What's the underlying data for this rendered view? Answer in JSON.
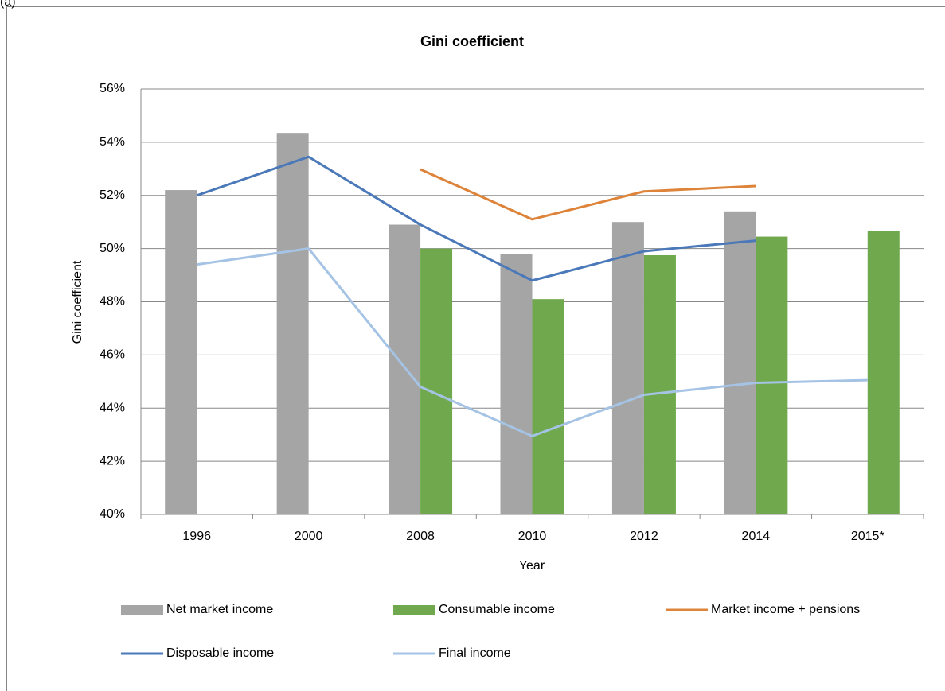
{
  "chart_data": {
    "type": "bar",
    "panel_label": "(a)",
    "title": "Gini coefficient",
    "x_label": "Year",
    "y_label": "Gini coefficient",
    "categories": [
      "1996",
      "2000",
      "2008",
      "2010",
      "2012",
      "2014",
      "2015*"
    ],
    "ylim": [
      40,
      56
    ],
    "yticks": [
      {
        "value": 40,
        "label": "40%"
      },
      {
        "value": 42,
        "label": "42%"
      },
      {
        "value": 44,
        "label": "44%"
      },
      {
        "value": 46,
        "label": "46%"
      },
      {
        "value": 48,
        "label": "48%"
      },
      {
        "value": 50,
        "label": "50%"
      },
      {
        "value": 52,
        "label": "52%"
      },
      {
        "value": 54,
        "label": "54%"
      },
      {
        "value": 56,
        "label": "56%"
      }
    ],
    "grid": true,
    "series": [
      {
        "name": "Net market income",
        "type": "bar",
        "color": "#a5a5a5",
        "values": [
          52.2,
          54.35,
          50.9,
          49.8,
          51.0,
          51.4,
          null
        ]
      },
      {
        "name": "Consumable income",
        "type": "bar",
        "color": "#70a94d",
        "values": [
          40,
          null,
          50.0,
          48.1,
          49.75,
          50.45,
          50.65
        ]
      },
      {
        "name": "Market income + pensions",
        "type": "line",
        "color": "#dd843a",
        "values": [
          null,
          null,
          52.98,
          51.1,
          52.15,
          52.35,
          null
        ]
      },
      {
        "name": "Disposable income",
        "type": "line",
        "color": "#4a78b8",
        "values": [
          52.0,
          53.45,
          50.9,
          48.8,
          49.9,
          50.3,
          null
        ]
      },
      {
        "name": "Final income",
        "type": "line",
        "color": "#a5c3e4",
        "values": [
          49.4,
          50.0,
          44.8,
          42.95,
          44.5,
          44.95,
          45.05
        ]
      }
    ]
  }
}
